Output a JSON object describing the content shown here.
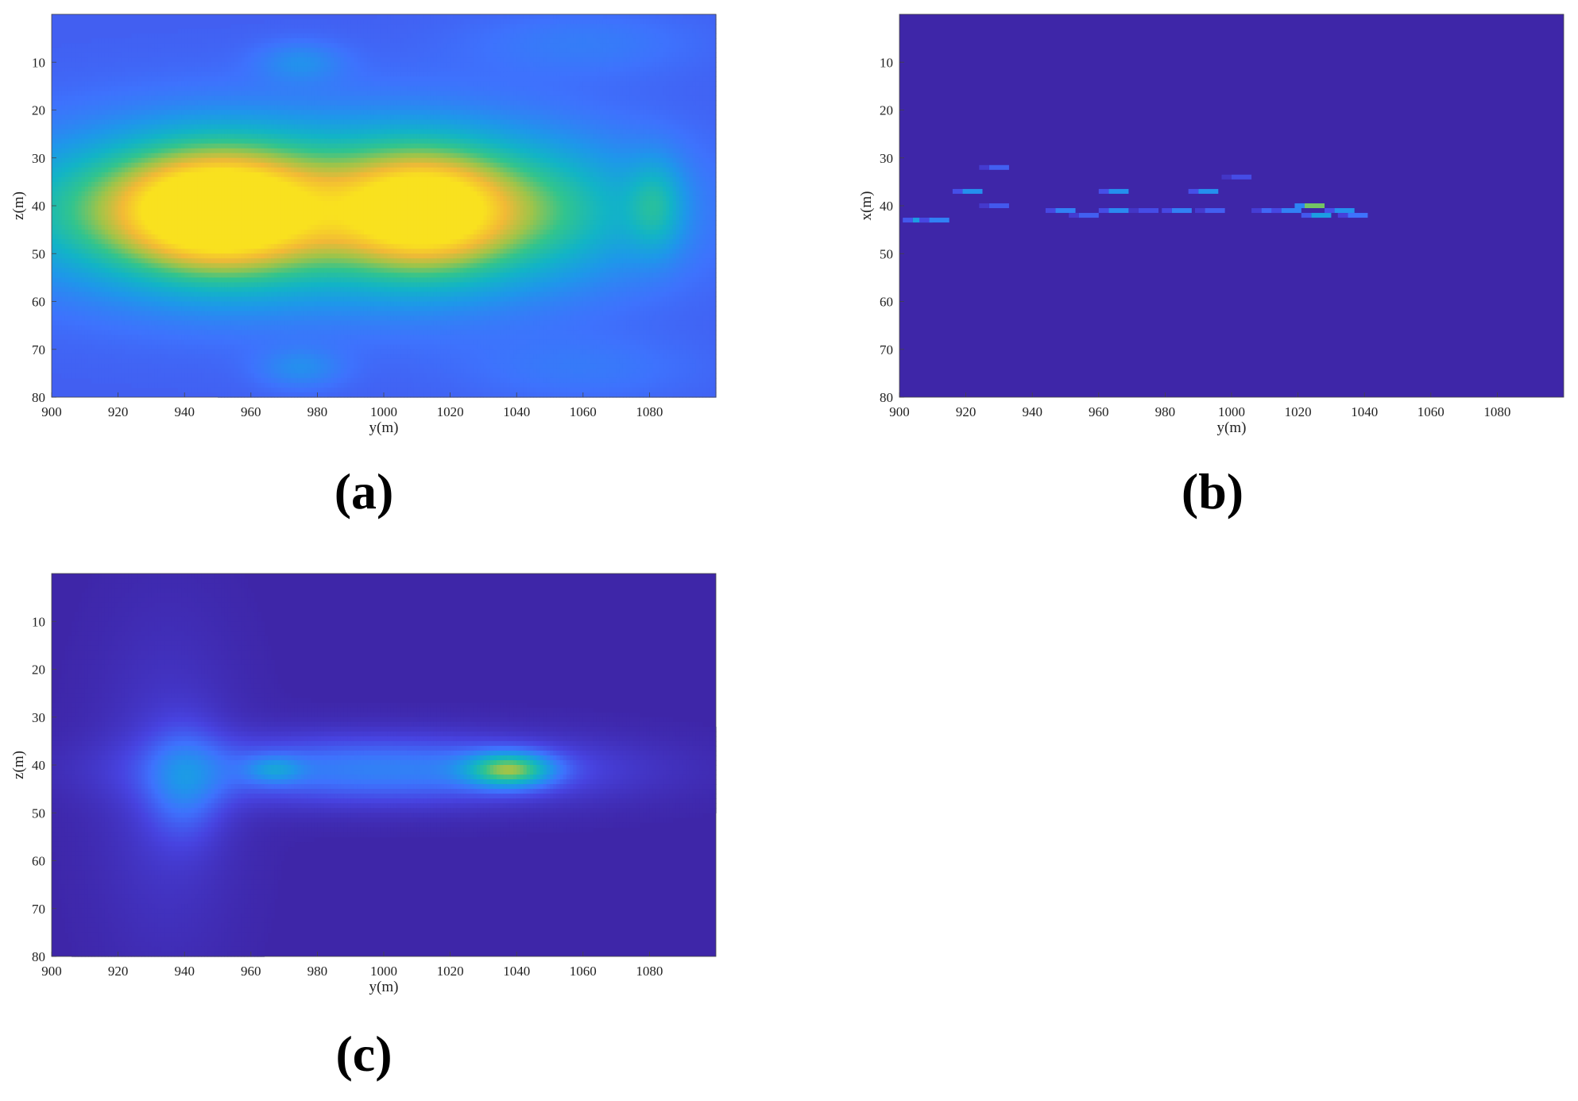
{
  "colors": {
    "colormap": [
      "#3e26a8",
      "#4743e0",
      "#3e72fd",
      "#1e97ea",
      "#12b4c6",
      "#31c48e",
      "#a0c449",
      "#f2b936",
      "#f9e11f"
    ]
  },
  "chart_data": [
    {
      "type": "heatmap",
      "panel_label": "(a)",
      "xlabel": "y(m)",
      "ylabel": "z(m)",
      "xlim": [
        900,
        1100
      ],
      "ylim": [
        0,
        80
      ],
      "y_reversed": true,
      "xticks": [
        900,
        920,
        940,
        960,
        980,
        1000,
        1020,
        1040,
        1060,
        1080
      ],
      "yticks": [
        10,
        20,
        30,
        40,
        50,
        60,
        70,
        80
      ],
      "features": [
        {
          "kind": "blob",
          "x": 951,
          "y": 41,
          "sx": 20,
          "sy": 9,
          "value": 0.55
        },
        {
          "kind": "blob",
          "x": 1011,
          "y": 41,
          "sx": 17,
          "sy": 9,
          "value": 0.5
        },
        {
          "kind": "blob",
          "x": 980,
          "y": 41,
          "sx": 55,
          "sy": 13,
          "value": 0.4
        },
        {
          "kind": "blob",
          "x": 930,
          "y": 41,
          "sx": 35,
          "sy": 10,
          "value": 0.28
        },
        {
          "kind": "blob",
          "x": 1040,
          "y": 41,
          "sx": 28,
          "sy": 10,
          "value": 0.28
        },
        {
          "kind": "blob",
          "x": 1082,
          "y": 40,
          "sx": 6,
          "sy": 7,
          "value": 0.22
        },
        {
          "kind": "blob",
          "x": 975,
          "y": 10,
          "sx": 9,
          "sy": 3,
          "value": 0.13
        },
        {
          "kind": "blob",
          "x": 975,
          "y": 74,
          "sx": 9,
          "sy": 3,
          "value": 0.13
        },
        {
          "kind": "blob",
          "x": 1060,
          "y": 6,
          "sx": 25,
          "sy": 5,
          "value": 0.08
        },
        {
          "kind": "blob",
          "x": 1060,
          "y": 74,
          "sx": 25,
          "sy": 5,
          "value": 0.07
        }
      ],
      "background": 0.2,
      "vmin": 0,
      "vmax": 1
    },
    {
      "type": "heatmap",
      "panel_label": "(b)",
      "xlabel": "y(m)",
      "ylabel": "x(m)",
      "xlim": [
        900,
        1100
      ],
      "ylim": [
        0,
        80
      ],
      "y_reversed": true,
      "xticks": [
        900,
        920,
        940,
        960,
        980,
        1000,
        1020,
        1040,
        1060,
        1080
      ],
      "yticks": [
        10,
        20,
        30,
        40,
        50,
        60,
        70,
        80
      ],
      "features": [
        {
          "kind": "cell",
          "x": 907,
          "y": 43,
          "value": 0.4
        },
        {
          "kind": "cell",
          "x": 912,
          "y": 43,
          "value": 0.3
        },
        {
          "kind": "cell",
          "x": 922,
          "y": 37,
          "value": 0.35
        },
        {
          "kind": "cell",
          "x": 930,
          "y": 32,
          "value": 0.2
        },
        {
          "kind": "cell",
          "x": 930,
          "y": 40,
          "value": 0.18
        },
        {
          "kind": "cell",
          "x": 950,
          "y": 41,
          "value": 0.3
        },
        {
          "kind": "cell",
          "x": 957,
          "y": 42,
          "value": 0.2
        },
        {
          "kind": "cell",
          "x": 966,
          "y": 37,
          "value": 0.35
        },
        {
          "kind": "cell",
          "x": 966,
          "y": 41,
          "value": 0.33
        },
        {
          "kind": "cell",
          "x": 975,
          "y": 41,
          "value": 0.15
        },
        {
          "kind": "cell",
          "x": 985,
          "y": 41,
          "value": 0.3
        },
        {
          "kind": "cell",
          "x": 993,
          "y": 37,
          "value": 0.35
        },
        {
          "kind": "cell",
          "x": 995,
          "y": 41,
          "value": 0.2
        },
        {
          "kind": "cell",
          "x": 1003,
          "y": 34,
          "value": 0.15
        },
        {
          "kind": "cell",
          "x": 1012,
          "y": 41,
          "value": 0.22
        },
        {
          "kind": "cell",
          "x": 1018,
          "y": 41,
          "value": 0.3
        },
        {
          "kind": "cell",
          "x": 1025,
          "y": 40,
          "value": 0.7
        },
        {
          "kind": "cell",
          "x": 1027,
          "y": 42,
          "value": 0.4
        },
        {
          "kind": "cell",
          "x": 1034,
          "y": 41,
          "value": 0.35
        },
        {
          "kind": "cell",
          "x": 1038,
          "y": 42,
          "value": 0.25
        }
      ],
      "background": 0.0,
      "vmin": 0,
      "vmax": 1
    },
    {
      "type": "heatmap",
      "panel_label": "(c)",
      "xlabel": "y(m)",
      "ylabel": "z(m)",
      "xlim": [
        900,
        1100
      ],
      "ylim": [
        0,
        80
      ],
      "y_reversed": true,
      "xticks": [
        900,
        920,
        940,
        960,
        980,
        1000,
        1020,
        1040,
        1060,
        1080
      ],
      "yticks": [
        10,
        20,
        30,
        40,
        50,
        60,
        70,
        80
      ],
      "features": [
        {
          "kind": "blob",
          "x": 1038,
          "y": 41,
          "sx": 9,
          "sy": 2.5,
          "value": 0.55
        },
        {
          "kind": "blob",
          "x": 967,
          "y": 41,
          "sx": 6,
          "sy": 2,
          "value": 0.2
        },
        {
          "kind": "blob",
          "x": 1000,
          "y": 41,
          "sx": 45,
          "sy": 5,
          "value": 0.3
        },
        {
          "kind": "blob",
          "x": 940,
          "y": 44,
          "sx": 8,
          "sy": 8,
          "value": 0.2
        },
        {
          "kind": "blob",
          "x": 935,
          "y": 45,
          "sx": 15,
          "sy": 25,
          "value": 0.08
        }
      ],
      "background": 0.0,
      "vmin": 0,
      "vmax": 1
    }
  ]
}
